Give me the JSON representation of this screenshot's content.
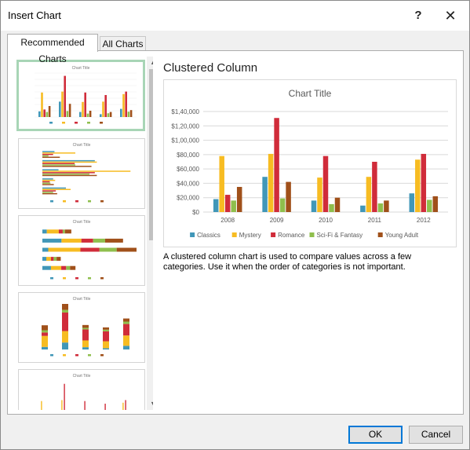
{
  "window": {
    "title": "Insert Chart",
    "help": "?",
    "close": "✕"
  },
  "tabs": {
    "recommended": "Recommended Charts",
    "all": "All Charts"
  },
  "preview": {
    "name": "Clustered Column",
    "description": "A clustered column chart is used to compare values across a few categories. Use it when the order of categories is not important."
  },
  "buttons": {
    "ok": "OK",
    "cancel": "Cancel"
  },
  "chart_data": {
    "type": "bar",
    "title": "Chart Title",
    "categories": [
      "2008",
      "2009",
      "2010",
      "2011",
      "2012"
    ],
    "ylim": [
      0,
      140000
    ],
    "yticks": [
      "$0",
      "$20,000",
      "$40,000",
      "$60,000",
      "$80,000",
      "$1,00,000",
      "$1,20,000",
      "$1,40,000"
    ],
    "grid": true,
    "legend_position": "bottom",
    "series": [
      {
        "name": "Classics",
        "color": "#4197b8",
        "values": [
          18000,
          49000,
          16000,
          9000,
          26000
        ]
      },
      {
        "name": "Mystery",
        "color": "#f7bc22",
        "values": [
          78000,
          81000,
          48000,
          49000,
          73000
        ]
      },
      {
        "name": "Romance",
        "color": "#d02c3a",
        "values": [
          24000,
          131000,
          78000,
          70000,
          81000
        ]
      },
      {
        "name": "Sci-Fi & Fantasy",
        "color": "#8fbf4d",
        "values": [
          16000,
          19000,
          11000,
          12000,
          17000
        ]
      },
      {
        "name": "Young Adult",
        "color": "#a0501a",
        "values": [
          35000,
          42000,
          20000,
          16000,
          22000
        ]
      }
    ]
  },
  "thumbnails": [
    {
      "title": "Chart Title"
    },
    {
      "title": "Chart Title"
    },
    {
      "title": "Chart Title"
    },
    {
      "title": "Chart Title"
    },
    {
      "title": "Chart Title"
    }
  ],
  "scroll": {
    "up": "▲",
    "down": "▼"
  }
}
